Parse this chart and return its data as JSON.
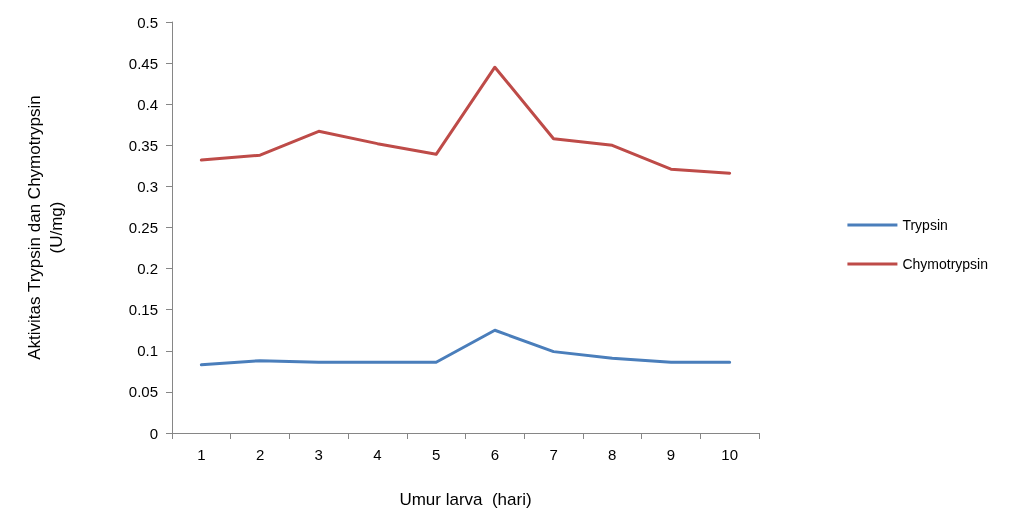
{
  "chart_data": {
    "type": "line",
    "xlabel": "Umur larva  (hari)",
    "ylabel": "Aktivitas Trypsin dan Chymotrypsin\n(U/mg)",
    "categories": [
      "1",
      "2",
      "3",
      "4",
      "5",
      "6",
      "7",
      "8",
      "9",
      "10"
    ],
    "series": [
      {
        "name": "Trypsin",
        "color": "#4a7ebb",
        "values": [
          0.083,
          0.088,
          0.086,
          0.086,
          0.086,
          0.125,
          0.099,
          0.091,
          0.086,
          0.086
        ]
      },
      {
        "name": "Chymotrypsin",
        "color": "#be4b48",
        "values": [
          0.332,
          0.338,
          0.367,
          0.352,
          0.339,
          0.445,
          0.358,
          0.35,
          0.321,
          0.316
        ]
      }
    ],
    "ylim": [
      0,
      0.5
    ],
    "yticks": [
      0,
      0.05,
      0.1,
      0.15,
      0.2,
      0.25,
      0.3,
      0.35,
      0.4,
      0.45,
      0.5
    ],
    "grid": false,
    "legend": "right",
    "marker": "none",
    "line_style": "solid"
  }
}
